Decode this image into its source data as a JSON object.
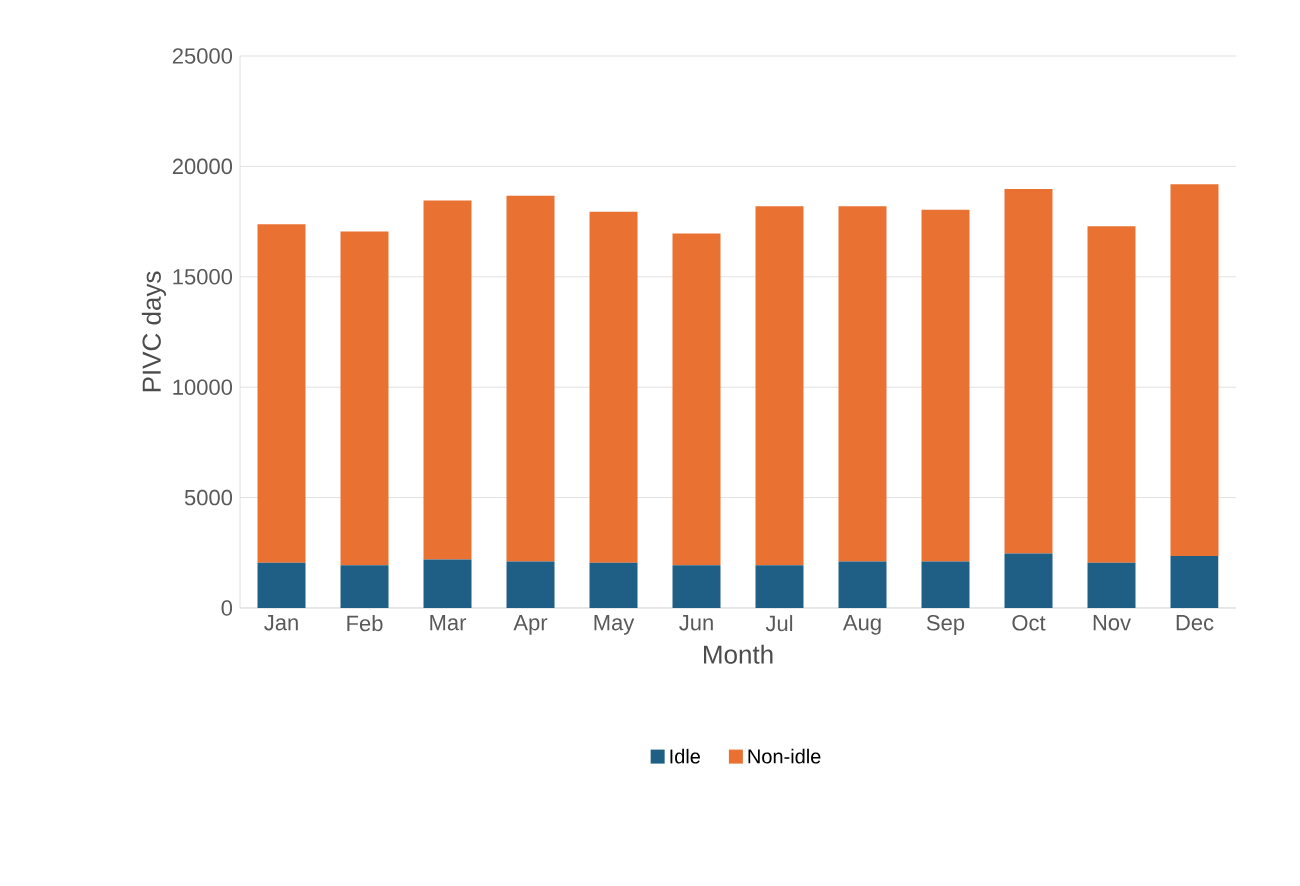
{
  "chart_data": {
    "type": "bar",
    "stacked": true,
    "xlabel": "Month",
    "ylabel": "PIVC days",
    "categories": [
      "Jan",
      "Feb",
      "Mar",
      "Apr",
      "May",
      "Jun",
      "Jul",
      "Aug",
      "Sep",
      "Oct",
      "Nov",
      "Dec"
    ],
    "series": [
      {
        "name": "Idle",
        "color": "#1f5f86",
        "values": [
          2050,
          1930,
          2200,
          2100,
          2050,
          1930,
          1930,
          2100,
          2100,
          2470,
          2050,
          2350
        ]
      },
      {
        "name": "Non-idle",
        "color": "#e97132",
        "values": [
          15330,
          15120,
          16260,
          16570,
          15900,
          15030,
          16260,
          16090,
          15940,
          16510,
          15240,
          16840
        ]
      }
    ],
    "ylim": [
      0,
      25000
    ],
    "yticks": [
      0,
      5000,
      10000,
      15000,
      20000,
      25000
    ],
    "grid": "y",
    "legend": "bottom"
  }
}
